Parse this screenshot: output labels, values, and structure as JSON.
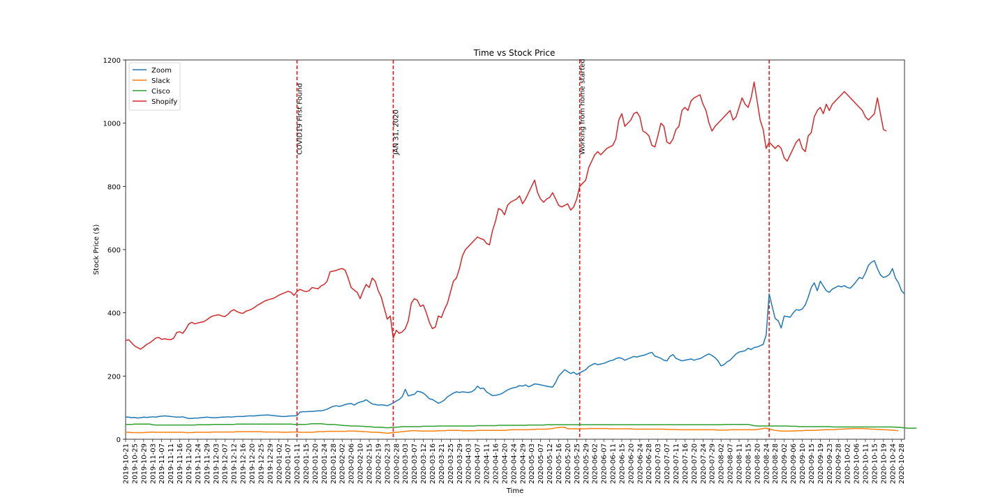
{
  "chart_data": {
    "type": "line",
    "title": "Time vs Stock Price",
    "xlabel": "Time",
    "ylabel": "Stock Price ($)",
    "ylim": [
      0,
      1200
    ],
    "yticks": [
      0,
      200,
      400,
      600,
      800,
      1000,
      1200
    ],
    "grid": false,
    "legend_position": "top-left",
    "x_start": "2019-10-21",
    "x_end": "2020-10-30",
    "series": [
      {
        "name": "Zoom",
        "color": "#1f77b4",
        "values": [
          70,
          70,
          68,
          69,
          67,
          68,
          70,
          69,
          70,
          71,
          70,
          72,
          73,
          74,
          73,
          72,
          71,
          70,
          70,
          71,
          68,
          66,
          66,
          67,
          67,
          68,
          69,
          70,
          69,
          68,
          68,
          69,
          70,
          70,
          71,
          70,
          71,
          72,
          72,
          72,
          73,
          74,
          74,
          74,
          75,
          76,
          76,
          77,
          76,
          75,
          74,
          73,
          72,
          72,
          73,
          74,
          74,
          75,
          86,
          87,
          87,
          88,
          88,
          89,
          90,
          90,
          92,
          95,
          100,
          104,
          106,
          104,
          106,
          110,
          112,
          113,
          108,
          114,
          118,
          120,
          125,
          118,
          112,
          110,
          108,
          109,
          108,
          106,
          110,
          115,
          121,
          126,
          135,
          158,
          137,
          140,
          142,
          152,
          150,
          146,
          138,
          128,
          126,
          120,
          114,
          118,
          124,
          134,
          140,
          146,
          150,
          148,
          150,
          149,
          148,
          150,
          156,
          168,
          160,
          162,
          150,
          144,
          138,
          139,
          141,
          144,
          150,
          156,
          160,
          163,
          165,
          170,
          168,
          172,
          166,
          170,
          175,
          174,
          172,
          170,
          168,
          166,
          165,
          180,
          200,
          210,
          220,
          214,
          208,
          212,
          205,
          210,
          215,
          220,
          230,
          235,
          240,
          236,
          238,
          240,
          244,
          248,
          250,
          255,
          258,
          256,
          250,
          254,
          258,
          262,
          260,
          263,
          265,
          268,
          272,
          275,
          263,
          260,
          256,
          250,
          248,
          262,
          268,
          256,
          252,
          248,
          250,
          252,
          254,
          250,
          253,
          255,
          260,
          266,
          270,
          265,
          258,
          248,
          232,
          236,
          245,
          250,
          260,
          270,
          276,
          278,
          280,
          288,
          284,
          290,
          292,
          296,
          300,
          330,
          460,
          420,
          382,
          375,
          352,
          390,
          388,
          386,
          400,
          410,
          408,
          412,
          425,
          450,
          480,
          495,
          470,
          500,
          485,
          470,
          465,
          475,
          480,
          485,
          482,
          486,
          480,
          478,
          488,
          500,
          512,
          508,
          526,
          550,
          560,
          565,
          540,
          520,
          512,
          515,
          522,
          540,
          510,
          495,
          470,
          460
        ]
      },
      {
        "name": "Slack",
        "color": "#ff7f0e",
        "values": [
          22,
          22,
          21,
          21,
          21,
          21,
          21,
          22,
          22,
          23,
          22,
          22,
          22,
          22,
          22,
          22,
          22,
          22,
          22,
          22,
          21,
          21,
          21,
          22,
          22,
          22,
          22,
          22,
          22,
          23,
          23,
          23,
          23,
          23,
          23,
          23,
          23,
          24,
          24,
          24,
          24,
          24,
          24,
          24,
          24,
          24,
          23,
          23,
          23,
          23,
          23,
          23,
          22,
          22,
          22,
          23,
          23,
          23,
          22,
          22,
          22,
          22,
          22,
          23,
          24,
          24,
          24,
          25,
          25,
          25,
          25,
          25,
          25,
          25,
          26,
          26,
          26,
          25,
          25,
          24,
          24,
          23,
          22,
          22,
          22,
          21,
          20,
          19,
          20,
          21,
          22,
          23,
          24,
          25,
          26,
          27,
          27,
          27,
          26,
          26,
          26,
          26,
          26,
          26,
          27,
          27,
          27,
          28,
          28,
          28,
          28,
          28,
          27,
          27,
          27,
          27,
          27,
          28,
          28,
          28,
          28,
          28,
          28,
          28,
          28,
          28,
          28,
          29,
          30,
          30,
          30,
          30,
          30,
          30,
          30,
          31,
          31,
          32,
          32,
          32,
          32,
          33,
          34,
          36,
          37,
          38,
          38,
          33,
          33,
          33,
          33,
          33,
          33,
          33,
          34,
          34,
          34,
          34,
          34,
          34,
          34,
          33,
          33,
          33,
          33,
          33,
          33,
          33,
          33,
          32,
          32,
          32,
          32,
          32,
          32,
          32,
          32,
          32,
          32,
          32,
          31,
          31,
          31,
          31,
          30,
          30,
          30,
          30,
          30,
          30,
          30,
          30,
          30,
          30,
          30,
          30,
          30,
          29,
          29,
          29,
          29,
          30,
          30,
          30,
          30,
          30,
          30,
          30,
          30,
          30,
          31,
          32,
          34,
          35,
          32,
          30,
          28,
          27,
          26,
          26,
          26,
          26,
          26,
          27,
          27,
          27,
          28,
          28,
          28,
          28,
          29,
          29,
          30,
          30,
          30,
          30,
          31,
          32,
          32,
          32,
          33,
          33,
          34,
          34,
          34,
          34,
          33,
          33,
          32,
          32,
          31,
          31,
          30,
          30,
          29,
          29,
          28,
          27
        ]
      },
      {
        "name": "Cisco",
        "color": "#2ca02c",
        "values": [
          47,
          47,
          47,
          48,
          48,
          48,
          48,
          48,
          48,
          46,
          45,
          45,
          45,
          45,
          45,
          45,
          45,
          45,
          45,
          45,
          45,
          45,
          45,
          45,
          46,
          46,
          46,
          46,
          46,
          47,
          47,
          47,
          47,
          47,
          47,
          47,
          47,
          48,
          48,
          48,
          48,
          48,
          48,
          48,
          48,
          48,
          48,
          48,
          48,
          48,
          48,
          48,
          48,
          48,
          48,
          48,
          47,
          47,
          47,
          47,
          47,
          48,
          49,
          49,
          49,
          49,
          48,
          47,
          47,
          47,
          46,
          45,
          44,
          43,
          43,
          42,
          42,
          42,
          41,
          41,
          40,
          40,
          39,
          38,
          38,
          38,
          37,
          36,
          37,
          38,
          38,
          39,
          40,
          40,
          40,
          40,
          40,
          40,
          40,
          41,
          41,
          41,
          41,
          41,
          42,
          42,
          42,
          42,
          42,
          42,
          42,
          42,
          42,
          42,
          42,
          42,
          42,
          43,
          43,
          43,
          43,
          43,
          43,
          43,
          44,
          44,
          44,
          44,
          44,
          44,
          44,
          44,
          44,
          44,
          45,
          45,
          45,
          45,
          45,
          45,
          46,
          46,
          46,
          46,
          46,
          46,
          46,
          46,
          46,
          46,
          46,
          46,
          46,
          46,
          46,
          46,
          46,
          46,
          46,
          46,
          46,
          46,
          46,
          46,
          46,
          46,
          46,
          46,
          46,
          46,
          46,
          46,
          46,
          46,
          46,
          46,
          46,
          46,
          46,
          46,
          46,
          46,
          46,
          46,
          46,
          46,
          46,
          46,
          46,
          46,
          46,
          46,
          46,
          46,
          46,
          46,
          46,
          46,
          46,
          47,
          47,
          47,
          47,
          47,
          47,
          47,
          47,
          47,
          45,
          43,
          42,
          42,
          42,
          42,
          42,
          42,
          42,
          42,
          42,
          42,
          42,
          41,
          41,
          41,
          40,
          40,
          40,
          40,
          40,
          40,
          40,
          40,
          40,
          40,
          40,
          39,
          39,
          39,
          39,
          39,
          39,
          39,
          39,
          39,
          39,
          39,
          39,
          39,
          39,
          39,
          39,
          39,
          39,
          39,
          39,
          39,
          38,
          38,
          37,
          36,
          35,
          35,
          35,
          35
        ]
      },
      {
        "name": "Shopify",
        "color": "#d62728",
        "values": [
          312,
          315,
          305,
          295,
          290,
          285,
          292,
          300,
          305,
          312,
          320,
          322,
          316,
          318,
          316,
          315,
          320,
          338,
          340,
          335,
          348,
          365,
          370,
          365,
          368,
          370,
          372,
          378,
          385,
          390,
          392,
          394,
          390,
          388,
          395,
          405,
          410,
          404,
          400,
          398,
          405,
          408,
          412,
          418,
          425,
          430,
          436,
          440,
          443,
          445,
          450,
          456,
          460,
          464,
          468,
          465,
          455,
          468,
          474,
          470,
          467,
          470,
          480,
          478,
          476,
          485,
          490,
          500,
          530,
          532,
          534,
          538,
          540,
          535,
          510,
          480,
          472,
          465,
          445,
          470,
          490,
          480,
          510,
          500,
          470,
          450,
          415,
          380,
          390,
          320,
          345,
          335,
          340,
          350,
          375,
          430,
          445,
          440,
          420,
          425,
          400,
          370,
          350,
          355,
          390,
          385,
          410,
          430,
          465,
          500,
          510,
          540,
          580,
          600,
          610,
          620,
          630,
          640,
          635,
          632,
          620,
          615,
          660,
          690,
          730,
          725,
          710,
          740,
          750,
          755,
          760,
          770,
          745,
          760,
          780,
          800,
          820,
          780,
          760,
          750,
          760,
          765,
          780,
          760,
          740,
          735,
          740,
          745,
          725,
          735,
          760,
          800,
          810,
          820,
          860,
          880,
          900,
          910,
          900,
          910,
          920,
          925,
          930,
          950,
          1010,
          1030,
          990,
          1000,
          1010,
          1030,
          1035,
          1020,
          975,
          970,
          960,
          930,
          925,
          960,
          1000,
          990,
          940,
          935,
          950,
          980,
          990,
          1040,
          1050,
          1040,
          1070,
          1080,
          1085,
          1090,
          1060,
          1040,
          1000,
          975,
          990,
          1000,
          1010,
          1020,
          1030,
          1040,
          1010,
          1020,
          1050,
          1080,
          1060,
          1050,
          1080,
          1130,
          1070,
          1010,
          980,
          920,
          940,
          930,
          920,
          930,
          920,
          890,
          880,
          900,
          920,
          940,
          950,
          920,
          910,
          960,
          970,
          1020,
          1040,
          1050,
          1030,
          1060,
          1040,
          1060,
          1070,
          1080,
          1090,
          1100,
          1090,
          1080,
          1070,
          1060,
          1050,
          1040,
          1020,
          1010,
          1020,
          1030,
          1080,
          1030,
          980,
          975
        ]
      }
    ],
    "annotations": [
      {
        "label": "COVID19 First Found",
        "index": 57,
        "color": "#ff0000"
      },
      {
        "label": "JAN 31, 2020",
        "index": 89,
        "color": "#ff0000"
      },
      {
        "label": "Working from home started",
        "index": 151,
        "color": "#ff0000"
      },
      {
        "label": "",
        "index": 214,
        "color": "#ff0000"
      }
    ]
  }
}
